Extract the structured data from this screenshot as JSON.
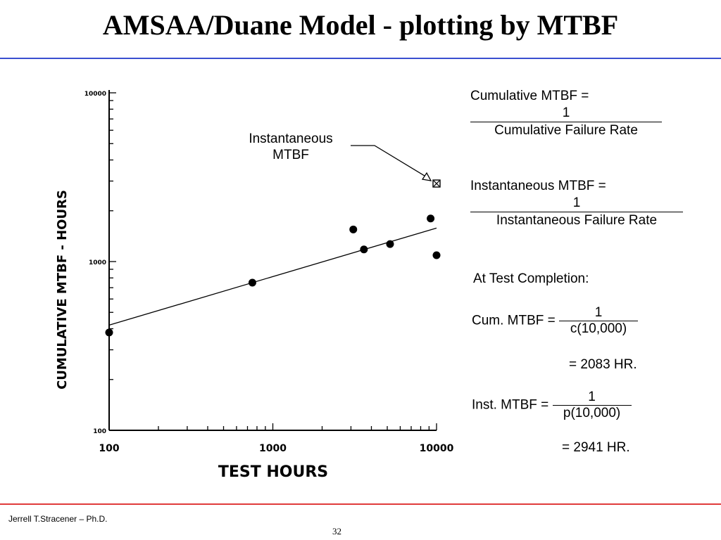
{
  "slide": {
    "title": "AMSAA/Duane Model - plotting by MTBF",
    "footer_author": "Jerrell T.Stracener – Ph.D.",
    "page_number": "32"
  },
  "chart_data": {
    "type": "scatter",
    "xlabel": "TEST HOURS",
    "ylabel": "CUMULATIVE MTBF - HOURS",
    "x_scale": "log",
    "y_scale": "log",
    "xlim": [
      100,
      10000
    ],
    "ylim": [
      100,
      10000
    ],
    "x_ticks": [
      "100",
      "1000",
      "10000"
    ],
    "y_ticks": [
      "100",
      "1000",
      "10000"
    ],
    "series": [
      {
        "points": [
          {
            "x": 100,
            "y": 380
          },
          {
            "x": 750,
            "y": 750
          },
          {
            "x": 3100,
            "y": 1550
          },
          {
            "x": 3600,
            "y": 1180
          },
          {
            "x": 5200,
            "y": 1270
          },
          {
            "x": 9200,
            "y": 1800
          },
          {
            "x": 10000,
            "y": 1090
          }
        ]
      }
    ],
    "fit_line": [
      {
        "x": 100,
        "y": 420
      },
      {
        "x": 10000,
        "y": 1580
      }
    ],
    "instantaneous_point": {
      "x": 10000,
      "y": 2900
    },
    "annotation": {
      "line1": "Instantaneous",
      "line2": "MTBF"
    },
    "grid": false,
    "legend": "none"
  },
  "formulas": {
    "cum_mtbf_label": "Cumulative MTBF =",
    "cum_mtbf_num": "1",
    "cum_mtbf_den": "Cumulative Failure Rate",
    "inst_mtbf_label": "Instantaneous MTBF =",
    "inst_mtbf_num": "1",
    "inst_mtbf_den": "Instantaneous Failure Rate",
    "test_completion": "At Test Completion:",
    "cum_eq_label": "Cum. MTBF =",
    "cum_eq_num": "1",
    "cum_eq_den": "c(10,000)",
    "cum_result": "= 2083 HR.",
    "inst_eq_label": "Inst. MTBF =",
    "inst_eq_num": "1",
    "inst_eq_den": "p(10,000)",
    "inst_result": "= 2941 HR."
  }
}
